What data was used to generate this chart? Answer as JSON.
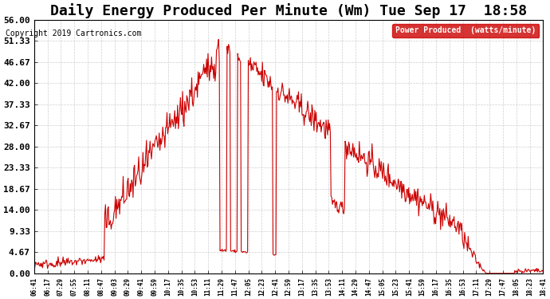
{
  "title": "Daily Energy Produced Per Minute (Wm) Tue Sep 17  18:58",
  "copyright": "Copyright 2019 Cartronics.com",
  "legend_label": "Power Produced  (watts/minute)",
  "legend_bg": "#cc0000",
  "legend_fg": "#ffffff",
  "line_color": "#cc0000",
  "background_color": "#ffffff",
  "grid_color": "#bbbbbb",
  "ylim": [
    0,
    56.0
  ],
  "yticks": [
    0.0,
    4.67,
    9.33,
    14.0,
    18.67,
    23.33,
    28.0,
    32.67,
    37.33,
    42.0,
    46.67,
    51.33,
    56.0
  ],
  "title_fontsize": 13,
  "copyright_fontsize": 7,
  "ylabel_fontsize": 8,
  "xtick_fontsize": 5.5,
  "ytick_fontsize": 8,
  "xtick_labels": [
    "06:41",
    "06:17",
    "07:29",
    "07:55",
    "08:11",
    "08:47",
    "09:03",
    "09:29",
    "09:41",
    "09:59",
    "10:17",
    "10:35",
    "10:53",
    "11:11",
    "11:29",
    "11:47",
    "12:05",
    "12:23",
    "12:41",
    "12:59",
    "13:17",
    "13:35",
    "13:53",
    "14:11",
    "14:29",
    "14:47",
    "15:05",
    "15:23",
    "15:41",
    "15:59",
    "16:17",
    "16:35",
    "16:53",
    "17:11",
    "17:29",
    "17:47",
    "18:05",
    "18:23",
    "18:41"
  ]
}
